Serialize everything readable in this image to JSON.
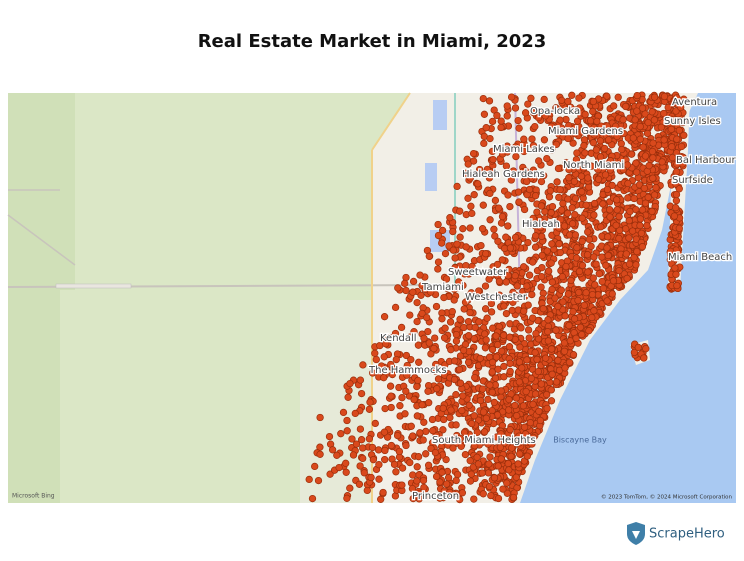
{
  "title": "Real Estate Market in Miami, 2023",
  "map": {
    "places": [
      "Aventura",
      "Sunny Isles",
      "Opa-locka",
      "Miami Gardens",
      "Miami Lakes",
      "Hialeah Gardens",
      "North Miami",
      "Bal Harbour",
      "Surfside",
      "Hialeah",
      "Miami Beach",
      "Sweetwater",
      "Tamiami",
      "Westchester",
      "Kendall",
      "The Hammocks",
      "South Miami Heights",
      "Princeton",
      "Biscayne Bay"
    ],
    "attribution_left": "Microsoft Bing",
    "attribution_right": "© 2023 TomTom, © 2024 Microsoft Corporation"
  },
  "brand": "ScrapeHero"
}
